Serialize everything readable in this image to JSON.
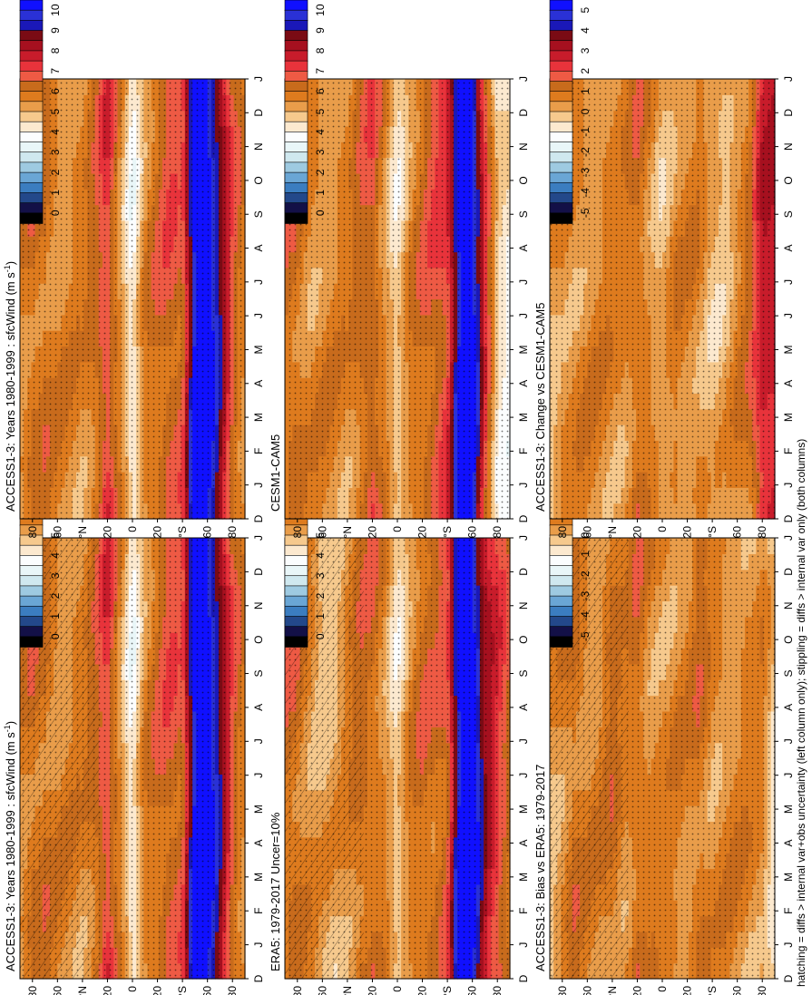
{
  "colors": {
    "abs_scale": [
      "#f2f2f2",
      "#131047",
      "#23488a",
      "#3b7dc0",
      "#6aa6d5",
      "#9ecae1",
      "#cfe8ef",
      "#e9f6f8",
      "#fbfdfe",
      "#fce9cf",
      "#f6c98d",
      "#e99d4a",
      "#de7b1e",
      "#c86b1c",
      "#ee5a44",
      "#e8333b",
      "#c81c2b",
      "#a6101f",
      "#7a0b14",
      "#1a18b8",
      "#2a31d6",
      "#1010ff"
    ],
    "diff_scale": [
      "#f2f2f2",
      "#131047",
      "#23488a",
      "#3b7dc0",
      "#6aa6d5",
      "#9ecae1",
      "#cfe8ef",
      "#e9f6f8",
      "#fbfdfe",
      "#fce9cf",
      "#f6c98d",
      "#e99d4a",
      "#de7b1e",
      "#c86b1c",
      "#ee5a44",
      "#e8333b",
      "#c81c2b",
      "#a6101f",
      "#7a0b14",
      "#1a18b8",
      "#2a31d6",
      "#1010ff"
    ]
  },
  "months": [
    "D",
    "J",
    "F",
    "M",
    "A",
    "M",
    "J",
    "J",
    "A",
    "S",
    "O",
    "N",
    "D",
    "J"
  ],
  "lat_ticks": [
    "80",
    "60",
    "°N",
    "20",
    "0",
    "20",
    "°S",
    "60",
    "80"
  ],
  "abs_bar_labels": [
    "10",
    "9",
    "8",
    "7",
    "6",
    "5",
    "4",
    "3",
    "2",
    "1",
    "0"
  ],
  "diff_bar_labels": [
    "5",
    "4",
    "3",
    "2",
    "1",
    "0",
    "-1",
    "-2",
    "-3",
    "-4",
    "-5"
  ],
  "footnote": "hatching = diffs > internal var+obs uncertainty (left column only); stippling = diffs > internal var only (both columns)",
  "chart_data": [
    {
      "type": "heatmap",
      "panel": "left-top",
      "title": "ACCESS1-3: Years 1980-1999 : sfcWind (m s-1)",
      "title_main": "ACCESS1-3: Years 1980-1999 : sfcWind (m s",
      "title_sup": "-1",
      "title_close": ")",
      "xlabel": "month",
      "ylabel": "latitude",
      "colorbar": "abs",
      "range": [
        0,
        10
      ],
      "hatched": true,
      "stippled": true,
      "profile_lat": [
        -90,
        -80,
        -70,
        -60,
        -50,
        -40,
        -30,
        -20,
        -10,
        0,
        10,
        20,
        30,
        40,
        50,
        60,
        70,
        80,
        90
      ],
      "profile_value": [
        5.5,
        6.5,
        8.5,
        10,
        10,
        6.5,
        6.5,
        6,
        5.5,
        4,
        5.5,
        7,
        6,
        5.5,
        5.5,
        5.5,
        6,
        6,
        5.5
      ]
    },
    {
      "type": "heatmap",
      "panel": "right-top",
      "title": "ACCESS1-3: Years 1980-1999 : sfcWind (m s-1)",
      "title_main": "ACCESS1-3: Years 1980-1999 : sfcWind (m s",
      "title_sup": "-1",
      "title_close": ")",
      "xlabel": "month",
      "ylabel": "latitude",
      "colorbar": "abs",
      "range": [
        0,
        10
      ],
      "hatched": false,
      "stippled": true,
      "profile_lat": [
        -90,
        -80,
        -70,
        -60,
        -50,
        -40,
        -30,
        -20,
        -10,
        0,
        10,
        20,
        30,
        40,
        50,
        60,
        70,
        80,
        90
      ],
      "profile_value": [
        5.5,
        6.5,
        8.5,
        10,
        10,
        6.5,
        6.5,
        6,
        5.5,
        4,
        5.5,
        7,
        6,
        5.5,
        5.5,
        5.5,
        6,
        6,
        5.5
      ]
    },
    {
      "type": "heatmap",
      "panel": "left-middle",
      "title": "ERA5: 1979-2017 Uncer=10%",
      "xlabel": "month",
      "ylabel": "latitude",
      "colorbar": "abs",
      "range": [
        0,
        10
      ],
      "hatched": true,
      "stippled": true,
      "profile_lat": [
        -90,
        -80,
        -70,
        -60,
        -50,
        -40,
        -30,
        -20,
        -10,
        0,
        10,
        20,
        30,
        40,
        50,
        60,
        70,
        80,
        90
      ],
      "profile_value": [
        6,
        7,
        8,
        10,
        10,
        6.5,
        6,
        6,
        5.5,
        4.5,
        5.5,
        6,
        6,
        5.5,
        5,
        5,
        5.5,
        6,
        6
      ]
    },
    {
      "type": "heatmap",
      "panel": "right-middle",
      "title": "CESM1-CAM5",
      "xlabel": "month",
      "ylabel": "latitude",
      "colorbar": "abs",
      "range": [
        0,
        10
      ],
      "hatched": false,
      "stippled": true,
      "profile_lat": [
        -90,
        -80,
        -70,
        -60,
        -50,
        -40,
        -30,
        -20,
        -10,
        0,
        10,
        20,
        30,
        40,
        50,
        60,
        70,
        80,
        90
      ],
      "profile_value": [
        4,
        4.5,
        7,
        10,
        10,
        7,
        6.5,
        6,
        5.5,
        4.5,
        5.5,
        6.5,
        6,
        5.5,
        5.5,
        5.5,
        5.5,
        6,
        6
      ]
    },
    {
      "type": "heatmap",
      "panel": "left-bottom",
      "title": "ACCESS1-3: Bias vs ERA5: 1979-2017",
      "xlabel": "month",
      "ylabel": "latitude",
      "colorbar": "diff",
      "range": [
        -5,
        5
      ],
      "hatched": true,
      "stippled": true,
      "profile_lat": [
        -90,
        -80,
        -70,
        -60,
        -50,
        -40,
        -30,
        -20,
        -10,
        0,
        10,
        20,
        30,
        40,
        50,
        60,
        70,
        80,
        90
      ],
      "profile_value": [
        -0.5,
        0.5,
        0.5,
        0.5,
        0.5,
        0.5,
        1,
        0.5,
        0.5,
        0.5,
        0.5,
        1,
        0.5,
        1,
        0.5,
        0.5,
        1,
        0.5,
        0
      ]
    },
    {
      "type": "heatmap",
      "panel": "right-bottom",
      "title": "ACCESS1-3: Change vs CESM1-CAM5",
      "xlabel": "month",
      "ylabel": "latitude",
      "colorbar": "diff",
      "range": [
        -5,
        5
      ],
      "hatched": false,
      "stippled": true,
      "profile_lat": [
        -90,
        -80,
        -70,
        -60,
        -50,
        -40,
        -30,
        -20,
        -10,
        0,
        10,
        20,
        30,
        40,
        50,
        60,
        70,
        80,
        90
      ],
      "profile_value": [
        2.5,
        2.5,
        1,
        0.5,
        0,
        0,
        0.5,
        0.5,
        0.5,
        0,
        0.5,
        1,
        0.5,
        0.5,
        0.5,
        0.5,
        0.5,
        0.5,
        0
      ]
    }
  ]
}
